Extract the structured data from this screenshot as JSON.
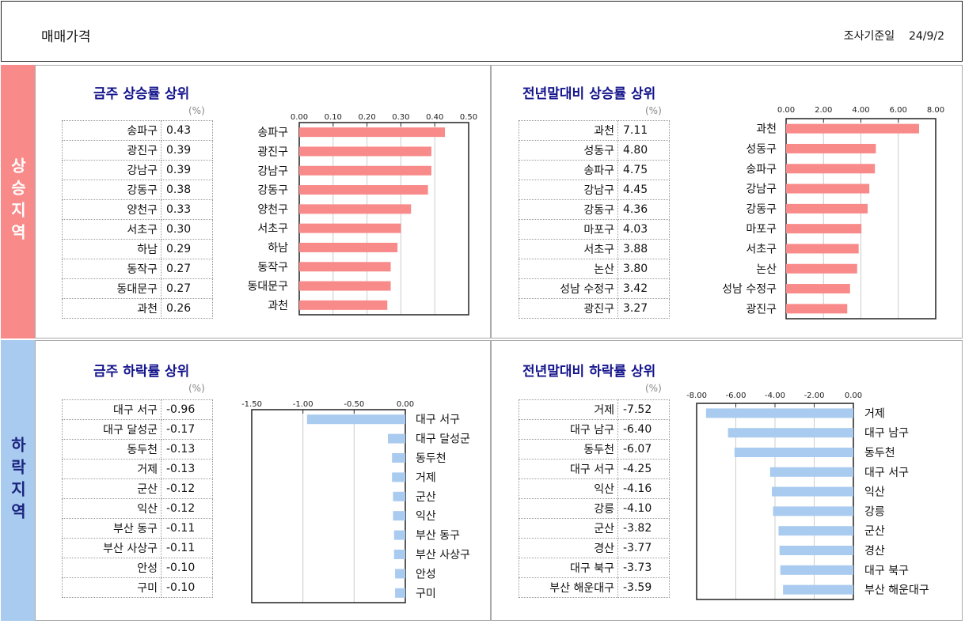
{
  "header": {
    "title": "매매가격",
    "survey_date_label": "조사기준일",
    "survey_date": "24/9/2"
  },
  "sections": {
    "rise": "상승지역",
    "fall": "하락지역"
  },
  "unit": "(%)",
  "chart_data": [
    {
      "type": "bar",
      "orientation": "horizontal",
      "title": "금주 상승률 상위",
      "xlim": [
        0,
        0.5
      ],
      "ticks": [
        0,
        0.1,
        0.2,
        0.3,
        0.4,
        0.5
      ],
      "tick_labels": [
        "0.00",
        "0.10",
        "0.20",
        "0.30",
        "0.40",
        "0.50"
      ],
      "categories": [
        "송파구",
        "광진구",
        "강남구",
        "강동구",
        "양천구",
        "서초구",
        "하남",
        "동작구",
        "동대문구",
        "과천"
      ],
      "values": [
        0.43,
        0.39,
        0.39,
        0.38,
        0.33,
        0.3,
        0.29,
        0.27,
        0.27,
        0.26
      ],
      "value_labels": [
        "0.43",
        "0.39",
        "0.39",
        "0.38",
        "0.33",
        "0.30",
        "0.29",
        "0.27",
        "0.27",
        "0.26"
      ],
      "color": "#f98a8a",
      "grid": true
    },
    {
      "type": "bar",
      "orientation": "horizontal",
      "title": "전년말대비 상승률 상위",
      "xlim": [
        0,
        8
      ],
      "ticks": [
        0,
        2,
        4,
        6,
        8
      ],
      "tick_labels": [
        "0.00",
        "2.00",
        "4.00",
        "6.00",
        "8.00"
      ],
      "categories": [
        "과천",
        "성동구",
        "송파구",
        "강남구",
        "강동구",
        "마포구",
        "서초구",
        "논산",
        "성남 수정구",
        "광진구"
      ],
      "values": [
        7.11,
        4.8,
        4.75,
        4.45,
        4.36,
        4.03,
        3.88,
        3.8,
        3.42,
        3.27
      ],
      "value_labels": [
        "7.11",
        "4.80",
        "4.75",
        "4.45",
        "4.36",
        "4.03",
        "3.88",
        "3.80",
        "3.42",
        "3.27"
      ],
      "color": "#f98a8a",
      "grid": true
    },
    {
      "type": "bar",
      "orientation": "horizontal",
      "title": "금주 하락률 상위",
      "xlim": [
        -1.5,
        0
      ],
      "ticks": [
        -1.5,
        -1,
        -0.5,
        0
      ],
      "tick_labels": [
        "-1.50",
        "-1.00",
        "-0.50",
        "0.00"
      ],
      "categories": [
        "대구 서구",
        "대구 달성군",
        "동두천",
        "거제",
        "군산",
        "익산",
        "부산 동구",
        "부산 사상구",
        "안성",
        "구미"
      ],
      "values": [
        -0.96,
        -0.17,
        -0.13,
        -0.13,
        -0.12,
        -0.12,
        -0.11,
        -0.11,
        -0.1,
        -0.1
      ],
      "value_labels": [
        "-0.96",
        "-0.17",
        "-0.13",
        "-0.13",
        "-0.12",
        "-0.12",
        "-0.11",
        "-0.11",
        "-0.10",
        "-0.10"
      ],
      "color": "#a9cbef",
      "grid": true
    },
    {
      "type": "bar",
      "orientation": "horizontal",
      "title": "전년말대비 하락률 상위",
      "xlim": [
        -8,
        0
      ],
      "ticks": [
        -8,
        -6,
        -4,
        -2,
        0
      ],
      "tick_labels": [
        "-8.00",
        "-6.00",
        "-4.00",
        "-2.00",
        "0.00"
      ],
      "categories": [
        "거제",
        "대구 남구",
        "동두천",
        "대구 서구",
        "익산",
        "강릉",
        "군산",
        "경산",
        "대구 북구",
        "부산 해운대구"
      ],
      "values": [
        -7.52,
        -6.4,
        -6.07,
        -4.25,
        -4.16,
        -4.1,
        -3.82,
        -3.77,
        -3.73,
        -3.59
      ],
      "value_labels": [
        "-7.52",
        "-6.40",
        "-6.07",
        "-4.25",
        "-4.16",
        "-4.10",
        "-3.82",
        "-3.77",
        "-3.73",
        "-3.59"
      ],
      "color": "#a9cbef",
      "grid": true
    }
  ]
}
